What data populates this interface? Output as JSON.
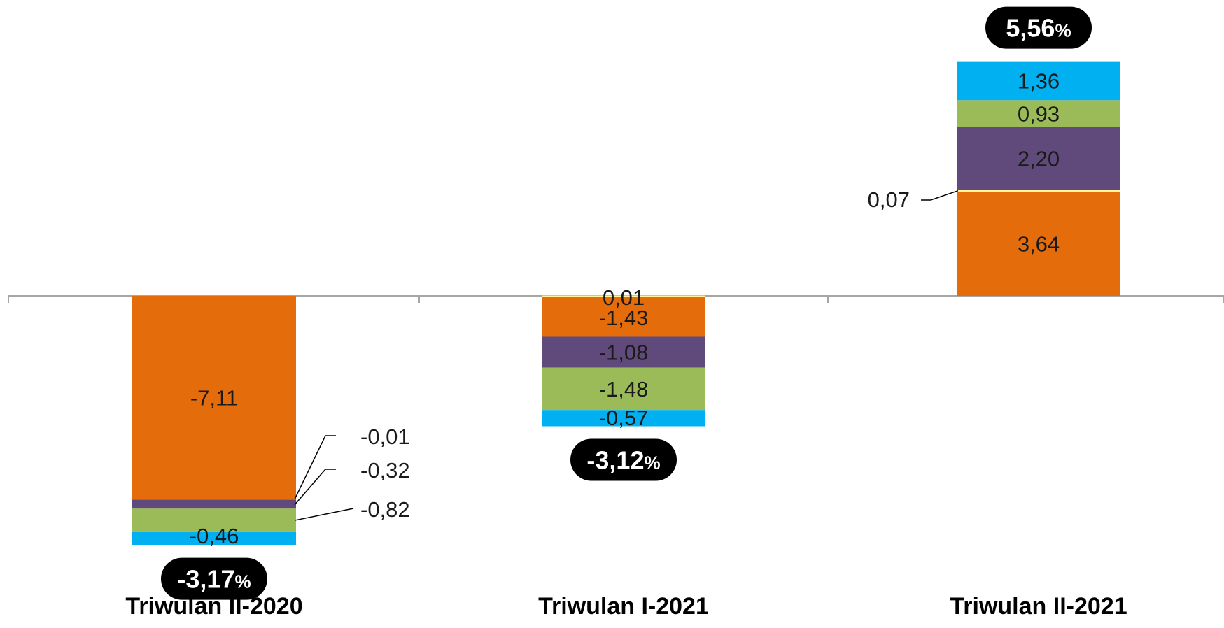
{
  "chart_data": {
    "type": "bar",
    "stacked": true,
    "categories": [
      "Triwulan II-2020",
      "Triwulan I-2021",
      "Triwulan II-2021"
    ],
    "series": [
      {
        "color": "#e46c0a",
        "values": [
          -7.11,
          -1.43,
          3.64
        ],
        "labels": [
          "-7,11",
          "-1,43",
          "3,64"
        ]
      },
      {
        "color": "#fff59d",
        "values": [
          -0.01,
          0.01,
          0.07
        ],
        "labels": [
          "-0,01",
          "0,01",
          "0,07"
        ]
      },
      {
        "color": "#604a7b",
        "values": [
          -0.32,
          -1.08,
          2.2
        ],
        "labels": [
          "-0,32",
          "-1,08",
          "2,20"
        ]
      },
      {
        "color": "#9bbb59",
        "values": [
          -0.82,
          -1.48,
          0.93
        ],
        "labels": [
          "-0,82",
          "-1,48",
          "0,93"
        ]
      },
      {
        "color": "#00b0f0",
        "values": [
          -0.46,
          -0.57,
          1.36
        ],
        "labels": [
          "-0,46",
          "-0,57",
          "1,36"
        ]
      }
    ],
    "totals": [
      {
        "value": -3.17,
        "number": "-3,17",
        "unit": "%"
      },
      {
        "value": -3.12,
        "number": "-3,12",
        "unit": "%"
      },
      {
        "value": 5.56,
        "number": "5,56",
        "unit": "%"
      }
    ],
    "axis_color": "#a6a6a6",
    "total_badge_color": "#000000",
    "ylim": [
      -9.0,
      10.5
    ]
  }
}
